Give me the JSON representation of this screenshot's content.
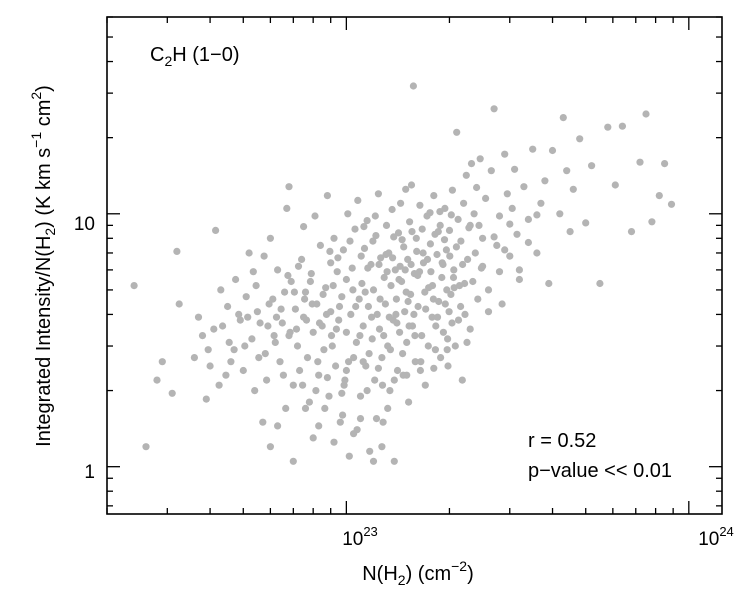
{
  "chart_data": {
    "type": "scatter",
    "x_scale": "log",
    "y_scale": "log",
    "xlim": [
      2e+22,
      1.25e+24
    ],
    "ylim": [
      0.65,
      60
    ],
    "xlabel": {
      "base": "N(H",
      "sub": "2",
      "tail": ") (cm",
      "sup": "−2",
      "end": ")"
    },
    "ylabel": {
      "p1": "Integrated Intensity/N(H",
      "sub": "2",
      "p2": ") (K km s",
      "sup1": "−1",
      "p3": " cm",
      "sup2": "2",
      "p4": ")"
    },
    "x_ticks": [
      {
        "value": 1e+23,
        "base": "10",
        "exp": "23"
      },
      {
        "value": 1e+24,
        "base": "10",
        "exp": "24"
      }
    ],
    "y_ticks": [
      {
        "value": 1,
        "label": "1"
      },
      {
        "value": 10,
        "label": "10"
      }
    ],
    "annotations": {
      "molecule": {
        "p1": "C",
        "sub": "2",
        "p2": "H (1−0)"
      },
      "r": "r = 0.52",
      "pvalue": "p−value << 0.01"
    },
    "colors": {
      "points": "#b4b4b4",
      "molecule": "#1a1adc",
      "r": "#e41e1e",
      "pvalue": "#1ee41e"
    },
    "grid": false,
    "points": [
      [
        2.4e+22,
        5.2
      ],
      [
        2.6e+22,
        1.2
      ],
      [
        2.8e+22,
        2.2
      ],
      [
        2.9e+22,
        2.6
      ],
      [
        3.1e+22,
        1.95
      ],
      [
        3.2e+22,
        7.1
      ],
      [
        3.25e+22,
        4.4
      ],
      [
        3.6e+22,
        2.7
      ],
      [
        3.8e+22,
        3.3
      ],
      [
        3.9e+22,
        1.85
      ],
      [
        4e+22,
        2.5
      ],
      [
        4.15e+22,
        8.6
      ],
      [
        4.3e+22,
        5.0
      ],
      [
        4.35e+22,
        3.6
      ],
      [
        4.45e+22,
        2.3
      ],
      [
        4.5e+22,
        4.3
      ],
      [
        4.7e+22,
        2.9
      ],
      [
        4.75e+22,
        5.5
      ],
      [
        4.9e+22,
        3.8
      ],
      [
        5e+22,
        2.4
      ],
      [
        5.1e+22,
        4.7
      ],
      [
        5.2e+22,
        7.0
      ],
      [
        5.3e+22,
        3.2
      ],
      [
        5.4e+22,
        2.0
      ],
      [
        5.5e+22,
        4.1
      ],
      [
        5.6e+22,
        3.7
      ],
      [
        5.7e+22,
        1.5
      ],
      [
        5.8e+22,
        2.8
      ],
      [
        5.9e+22,
        3.6
      ],
      [
        6e+22,
        8.0
      ],
      [
        6e+22,
        1.2
      ],
      [
        6.1e+22,
        4.6
      ],
      [
        6.2e+22,
        3.1
      ],
      [
        6.3e+22,
        6.0
      ],
      [
        6.3e+22,
        1.45
      ],
      [
        6.4e+22,
        2.6
      ],
      [
        6.5e+22,
        3.7
      ],
      [
        6.6e+22,
        4.9
      ],
      [
        6.7e+22,
        10.5
      ],
      [
        6.8e+22,
        12.8
      ],
      [
        6.8e+22,
        3.3
      ],
      [
        6.9e+22,
        5.4
      ],
      [
        7e+22,
        2.1
      ],
      [
        7e+22,
        1.05
      ],
      [
        7.1e+22,
        4.2
      ],
      [
        7.2e+22,
        3.0
      ],
      [
        7.3e+22,
        2.4
      ],
      [
        7.4e+22,
        6.6
      ],
      [
        7.5e+22,
        8.9
      ],
      [
        7.5e+22,
        3.9
      ],
      [
        7.6e+22,
        4.9
      ],
      [
        7.7e+22,
        2.7
      ],
      [
        7.8e+22,
        1.8
      ],
      [
        7.9e+22,
        5.8
      ],
      [
        8e+22,
        3.4
      ],
      [
        8e+22,
        1.3
      ],
      [
        8.1e+22,
        9.8
      ],
      [
        8.2e+22,
        4.4
      ],
      [
        8.3e+22,
        2.3
      ],
      [
        8.4e+22,
        7.5
      ],
      [
        8.5e+22,
        3.6
      ],
      [
        8.6e+22,
        2.9
      ],
      [
        8.7e+22,
        5.1
      ],
      [
        8.8e+22,
        11.8
      ],
      [
        8.9e+22,
        1.9
      ],
      [
        9e+22,
        4.1
      ],
      [
        9e+22,
        6.4
      ],
      [
        9.1e+22,
        3.0
      ],
      [
        9.2e+22,
        8.0
      ],
      [
        9.3e+22,
        2.5
      ],
      [
        9.4e+22,
        5.9
      ],
      [
        9.5e+22,
        3.8
      ],
      [
        9.6e+22,
        1.5
      ],
      [
        9.7e+22,
        4.7
      ],
      [
        9.8e+22,
        7.2
      ],
      [
        9.9e+22,
        2.2
      ],
      [
        1e+23,
        3.4
      ],
      [
        1e+23,
        5.5
      ],
      [
        1.01e+23,
        10.0
      ],
      [
        1.02e+23,
        1.1
      ],
      [
        1.03e+23,
        4.0
      ],
      [
        1.04e+23,
        6.1
      ],
      [
        1.05e+23,
        2.7
      ],
      [
        1.06e+23,
        8.7
      ],
      [
        1.07e+23,
        3.1
      ],
      [
        1.08e+23,
        11.3
      ],
      [
        1.09e+23,
        4.6
      ],
      [
        1.1e+23,
        1.9
      ],
      [
        1.11e+23,
        5.3
      ],
      [
        1.12e+23,
        3.6
      ],
      [
        1.13e+23,
        7.3
      ],
      [
        1.14e+23,
        2.5
      ],
      [
        1.15e+23,
        9.4
      ],
      [
        1.16e+23,
        4.3
      ],
      [
        1.17e+23,
        1.15
      ],
      [
        1.18e+23,
        6.3
      ],
      [
        1.19e+23,
        3.2
      ],
      [
        1.2e+23,
        5.0
      ],
      [
        1.21e+23,
        2.2
      ],
      [
        1.22e+23,
        8.2
      ],
      [
        1.23e+23,
        4.0
      ],
      [
        1.24e+23,
        12.0
      ],
      [
        1.25e+23,
        3.5
      ],
      [
        1.26e+23,
        6.7
      ],
      [
        1.27e+23,
        2.7
      ],
      [
        1.28e+23,
        1.5
      ],
      [
        1.29e+23,
        5.6
      ],
      [
        1.3e+23,
        4.4
      ],
      [
        1.31e+23,
        9.0
      ],
      [
        1.32e+23,
        3.0
      ],
      [
        1.33e+23,
        7.0
      ],
      [
        1.34e+23,
        2.0
      ],
      [
        1.35e+23,
        5.2
      ],
      [
        1.36e+23,
        10.4
      ],
      [
        1.37e+23,
        3.8
      ],
      [
        1.38e+23,
        1.05
      ],
      [
        1.39e+23,
        6.0
      ],
      [
        1.4e+23,
        4.6
      ],
      [
        1.41e+23,
        2.4
      ],
      [
        1.42e+23,
        8.4
      ],
      [
        1.43e+23,
        3.4
      ],
      [
        1.44e+23,
        11.0
      ],
      [
        1.45e+23,
        5.4
      ],
      [
        1.46e+23,
        2.8
      ],
      [
        1.47e+23,
        7.4
      ],
      [
        1.48e+23,
        4.1
      ],
      [
        1.49e+23,
        12.5
      ],
      [
        1.5e+23,
        3.1
      ],
      [
        1.51e+23,
        6.6
      ],
      [
        1.52e+23,
        1.8
      ],
      [
        1.53e+23,
        9.3
      ],
      [
        1.54e+23,
        4.8
      ],
      [
        1.55e+23,
        13.0
      ],
      [
        1.56e+23,
        3.6
      ],
      [
        1.57e+23,
        32.0
      ],
      [
        1.58e+23,
        5.8
      ],
      [
        1.59e+23,
        2.6
      ],
      [
        1.6e+23,
        8.0
      ],
      [
        1.62e+23,
        4.3
      ],
      [
        1.64e+23,
        10.8
      ],
      [
        1.66e+23,
        3.3
      ],
      [
        1.68e+23,
        6.4
      ],
      [
        1.7e+23,
        2.1
      ],
      [
        1.72e+23,
        9.8
      ],
      [
        1.74e+23,
        5.1
      ],
      [
        1.76e+23,
        7.6
      ],
      [
        1.78e+23,
        3.9
      ],
      [
        1.8e+23,
        11.8
      ],
      [
        1.82e+23,
        2.9
      ],
      [
        1.84e+23,
        6.9
      ],
      [
        1.86e+23,
        4.5
      ],
      [
        1.88e+23,
        9.0
      ],
      [
        1.9e+23,
        5.6
      ],
      [
        1.92e+23,
        3.4
      ],
      [
        1.94e+23,
        10.5
      ],
      [
        1.96e+23,
        7.2
      ],
      [
        1.98e+23,
        2.5
      ],
      [
        2e+23,
        8.6
      ],
      [
        2.02e+23,
        4.8
      ],
      [
        2.04e+23,
        12.4
      ],
      [
        2.06e+23,
        6.0
      ],
      [
        2.08e+23,
        3.0
      ],
      [
        2.1e+23,
        21.0
      ],
      [
        2.12e+23,
        9.5
      ],
      [
        2.14e+23,
        5.2
      ],
      [
        2.16e+23,
        7.8
      ],
      [
        2.18e+23,
        2.2
      ],
      [
        2.2e+23,
        11.0
      ],
      [
        2.22e+23,
        4.0
      ],
      [
        2.24e+23,
        14.2
      ],
      [
        2.26e+23,
        6.6
      ],
      [
        2.28e+23,
        8.8
      ],
      [
        2.3e+23,
        3.5
      ],
      [
        2.32e+23,
        15.8
      ],
      [
        2.34e+23,
        5.4
      ],
      [
        2.36e+23,
        10.0
      ],
      [
        2.38e+23,
        7.0
      ],
      [
        2.4e+23,
        12.7
      ],
      [
        2.42e+23,
        4.6
      ],
      [
        2.44e+23,
        9.0
      ],
      [
        2.46e+23,
        16.5
      ],
      [
        2.48e+23,
        6.1
      ],
      [
        2.5e+23,
        8.0
      ],
      [
        2.55e+23,
        11.5
      ],
      [
        2.6e+23,
        5.0
      ],
      [
        2.65e+23,
        14.8
      ],
      [
        2.7e+23,
        26.0
      ],
      [
        2.75e+23,
        7.5
      ],
      [
        2.8e+23,
        9.8
      ],
      [
        2.85e+23,
        4.4
      ],
      [
        2.9e+23,
        17.2
      ],
      [
        2.95e+23,
        12.0
      ],
      [
        3e+23,
        6.8
      ],
      [
        3.05e+23,
        10.5
      ],
      [
        3.1e+23,
        15.0
      ],
      [
        3.15e+23,
        8.3
      ],
      [
        3.2e+23,
        5.5
      ],
      [
        3.3e+23,
        12.8
      ],
      [
        3.4e+23,
        9.5
      ],
      [
        3.5e+23,
        18.0
      ],
      [
        3.6e+23,
        7.0
      ],
      [
        3.7e+23,
        11.0
      ],
      [
        3.8e+23,
        13.5
      ],
      [
        3.9e+23,
        5.3
      ],
      [
        4e+23,
        17.8
      ],
      [
        4.2e+23,
        10.0
      ],
      [
        4.3e+23,
        24.0
      ],
      [
        4.4e+23,
        14.8
      ],
      [
        4.5e+23,
        8.5
      ],
      [
        4.6e+23,
        12.5
      ],
      [
        4.8e+23,
        19.8
      ],
      [
        5e+23,
        9.2
      ],
      [
        5.2e+23,
        15.5
      ],
      [
        5.5e+23,
        5.3
      ],
      [
        5.8e+23,
        22.0
      ],
      [
        6.1e+23,
        13.0
      ],
      [
        6.4e+23,
        22.2
      ],
      [
        6.8e+23,
        8.5
      ],
      [
        7.2e+23,
        16.0
      ],
      [
        7.5e+23,
        24.8
      ],
      [
        7.8e+23,
        9.3
      ],
      [
        8.2e+23,
        11.8
      ],
      [
        8.5e+23,
        15.8
      ],
      [
        8.9e+23,
        10.9
      ],
      [
        5.35e+22,
        5.9
      ],
      [
        6.55e+22,
        2.3
      ],
      [
        7.25e+22,
        6.2
      ],
      [
        7.65e+22,
        3.8
      ],
      [
        8.15e+22,
        2.0
      ],
      [
        8.55e+22,
        4.8
      ],
      [
        8.95e+22,
        7.1
      ],
      [
        9.35e+22,
        3.5
      ],
      [
        9.75e+22,
        1.6
      ],
      [
        1.015e+23,
        2.6
      ],
      [
        1.045e+23,
        5.0
      ],
      [
        1.075e+23,
        1.4
      ],
      [
        1.105e+23,
        6.8
      ],
      [
        1.135e+23,
        4.9
      ],
      [
        1.165e+23,
        2.8
      ],
      [
        1.195e+23,
        7.8
      ],
      [
        1.225e+23,
        1.55
      ],
      [
        1.255e+23,
        4.6
      ],
      [
        1.285e+23,
        3.3
      ],
      [
        1.315e+23,
        5.9
      ],
      [
        1.345e+23,
        2.9
      ],
      [
        1.375e+23,
        8.1
      ],
      [
        1.405e+23,
        3.7
      ],
      [
        1.435e+23,
        6.2
      ],
      [
        1.465e+23,
        2.3
      ],
      [
        1.495e+23,
        4.9
      ],
      [
        1.525e+23,
        3.6
      ],
      [
        1.555e+23,
        8.5
      ],
      [
        1.585e+23,
        3.3
      ],
      [
        1.615e+23,
        5.7
      ],
      [
        1.645e+23,
        2.4
      ],
      [
        1.675e+23,
        7.0
      ],
      [
        1.705e+23,
        4.2
      ],
      [
        1.735e+23,
        3.0
      ],
      [
        1.765e+23,
        5.9
      ],
      [
        1.795e+23,
        4.6
      ],
      [
        1.825e+23,
        3.6
      ],
      [
        1.855e+23,
        8.5
      ],
      [
        1.885e+23,
        2.7
      ],
      [
        1.915e+23,
        6.3
      ],
      [
        1.945e+23,
        4.4
      ],
      [
        1.975e+23,
        3.2
      ],
      [
        2.005e+23,
        6.8
      ],
      [
        2.035e+23,
        3.7
      ],
      [
        2.065e+23,
        5.1
      ],
      [
        2.095e+23,
        7.4
      ],
      [
        2.125e+23,
        3.8
      ],
      [
        2.155e+23,
        4.3
      ],
      [
        2.185e+23,
        6.3
      ],
      [
        2.215e+23,
        5.3
      ],
      [
        4.1e+22,
        3.5
      ],
      [
        4.6e+22,
        2.6
      ],
      [
        5.05e+22,
        3.0
      ],
      [
        5.45e+22,
        5.2
      ],
      [
        5.85e+22,
        2.2
      ],
      [
        6.25e+22,
        3.9
      ],
      [
        6.65e+22,
        1.7
      ],
      [
        7.05e+22,
        4.9
      ],
      [
        7.45e+22,
        2.1
      ],
      [
        7.85e+22,
        5.4
      ],
      [
        8.25e+22,
        2.6
      ],
      [
        8.65e+22,
        1.7
      ],
      [
        9.05e+22,
        3.3
      ],
      [
        9.45e+22,
        6.7
      ],
      [
        9.85e+22,
        2.1
      ],
      [
        1.025e+23,
        7.8
      ],
      [
        1.065e+23,
        4.3
      ],
      [
        1.095e+23,
        3.3
      ],
      [
        1.125e+23,
        8.9
      ],
      [
        1.155e+23,
        6.1
      ],
      [
        1.185e+23,
        3.9
      ],
      [
        1.215e+23,
        9.8
      ],
      [
        1.245e+23,
        6.3
      ],
      [
        1.275e+23,
        2.1
      ],
      [
        1.305e+23,
        6.9
      ],
      [
        1.335e+23,
        3.9
      ],
      [
        1.365e+23,
        6.7
      ],
      [
        1.395e+23,
        4.0
      ],
      [
        1.425e+23,
        5.5
      ],
      [
        1.455e+23,
        7.9
      ],
      [
        1.485e+23,
        6.0
      ],
      [
        1.515e+23,
        4.5
      ],
      [
        1.545e+23,
        6.3
      ],
      [
        1.575e+23,
        4.0
      ],
      [
        1.605e+23,
        7.1
      ],
      [
        1.635e+23,
        5.9
      ],
      [
        1.665e+23,
        8.7
      ],
      [
        1.695e+23,
        4.9
      ],
      [
        1.725e+23,
        6.6
      ],
      [
        1.755e+23,
        10.1
      ],
      [
        1.785e+23,
        5.2
      ],
      [
        1.815e+23,
        8.3
      ],
      [
        1.845e+23,
        3.9
      ],
      [
        1.875e+23,
        10.2
      ],
      [
        1.905e+23,
        6.4
      ],
      [
        1.935e+23,
        7.9
      ],
      [
        1.965e+23,
        5.0
      ],
      [
        1.995e+23,
        4.1
      ],
      [
        2.025e+23,
        9.9
      ],
      [
        2.055e+23,
        5.6
      ],
      [
        2.3e+23,
        9.0
      ],
      [
        2.5e+23,
        6.2
      ],
      [
        2.6e+23,
        4.1
      ],
      [
        2.7e+23,
        8.1
      ],
      [
        2.8e+23,
        5.9
      ],
      [
        2.9e+23,
        7.2
      ],
      [
        3e+23,
        9.1
      ],
      [
        3.2e+23,
        6.0
      ],
      [
        3.4e+23,
        7.7
      ],
      [
        3.6e+23,
        9.9
      ],
      [
        1.2e+23,
        1.05
      ],
      [
        9.2e+22,
        1.25
      ],
      [
        8.3e+22,
        1.45
      ],
      [
        7.6e+22,
        1.7
      ],
      [
        1.05e+23,
        1.35
      ],
      [
        1.1e+23,
        1.55
      ],
      [
        1.27e+23,
        1.2
      ],
      [
        1.15e+23,
        2.0
      ],
      [
        1.32e+23,
        1.7
      ],
      [
        9.7e+22,
        1.95
      ],
      [
        8.8e+22,
        2.25
      ],
      [
        1e+23,
        2.4
      ],
      [
        1.12e+23,
        2.6
      ],
      [
        1.24e+23,
        2.45
      ],
      [
        1.38e+23,
        2.2
      ],
      [
        1.5e+23,
        2.3
      ],
      [
        1.65e+23,
        2.6
      ],
      [
        1.8e+23,
        2.45
      ],
      [
        1.97e+23,
        2.9
      ],
      [
        2.25e+23,
        3.1
      ],
      [
        6.15e+22,
        3.3
      ],
      [
        6.45e+22,
        4.2
      ],
      [
        6.85e+22,
        3.4
      ],
      [
        7.15e+22,
        3.5
      ],
      [
        7.55e+22,
        4.6
      ],
      [
        7.95e+22,
        4.4
      ],
      [
        8.35e+22,
        3.7
      ],
      [
        8.75e+22,
        4.0
      ],
      [
        9.15e+22,
        5.2
      ],
      [
        9.55e+22,
        4.3
      ],
      [
        5.15e+22,
        3.9
      ],
      [
        5.55e+22,
        2.7
      ],
      [
        5.95e+22,
        4.4
      ],
      [
        4.85e+22,
        4.0
      ],
      [
        4.55e+22,
        3.1
      ],
      [
        4.25e+22,
        2.1
      ],
      [
        3.95e+22,
        2.9
      ],
      [
        3.7e+22,
        3.9
      ],
      [
        5.75e+22,
        6.8
      ],
      [
        6.75e+22,
        5.7
      ]
    ]
  }
}
